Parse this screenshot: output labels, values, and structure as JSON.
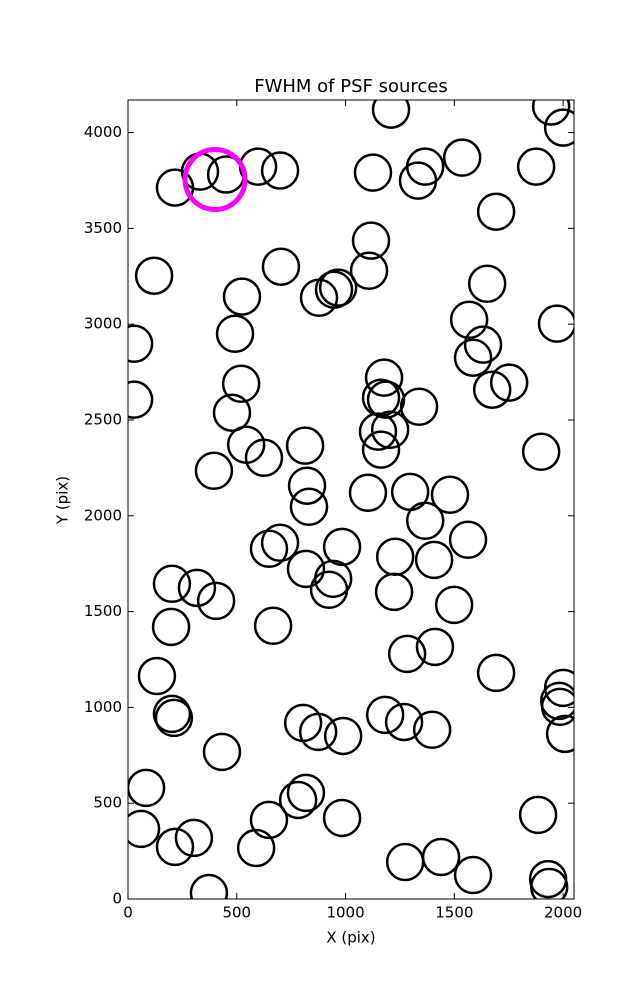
{
  "chart_data": {
    "type": "scatter",
    "title": "FWHM of PSF sources",
    "xlabel": "X (pix)",
    "ylabel": "Y (pix)",
    "xlim": [
      0,
      2050
    ],
    "ylim": [
      0,
      4170
    ],
    "xticks": [
      0,
      500,
      1000,
      1500,
      2000
    ],
    "yticks": [
      0,
      500,
      1000,
      1500,
      2000,
      2500,
      3000,
      3500,
      4000
    ],
    "series": [
      {
        "color": "#000000",
        "x": [
          216,
          331,
          451,
          598,
          699,
          1209,
          1126,
          1333,
          1366,
          1536,
          1876,
          1945,
          2000,
          120,
          1117,
          703,
          1692,
          1651,
          524,
          878,
          947,
          966,
          1108,
          28,
          492,
          1568,
          1632,
          1586,
          1972,
          520,
          28,
          478,
          1177,
          1163,
          1186,
          1149,
          1205,
          1163,
          1338,
          1674,
          1752,
          543,
          625,
          814,
          395,
          1899,
          823,
          832,
          1103,
          1297,
          1480,
          1366,
          1563,
          984,
          699,
          648,
          818,
          943,
          924,
          1228,
          1223,
          1407,
          202,
          317,
          405,
          198,
          667,
          1499,
          133,
          1283,
          1411,
          1692,
          202,
          211,
          2000,
          1982,
          1986,
          2009,
          805,
          874,
          989,
          1182,
          1269,
          1398,
          432,
          83,
          818,
          782,
          648,
          984,
          60,
          303,
          216,
          589,
          1274,
          1439,
          1586,
          1885,
          1931,
          1936,
          372
        ],
        "y": [
          3713,
          3796,
          3781,
          3822,
          3802,
          4120,
          3791,
          3749,
          3822,
          3869,
          3822,
          4136,
          4026,
          3253,
          3436,
          3300,
          3587,
          3211,
          3144,
          3138,
          3180,
          3191,
          3279,
          2898,
          2950,
          3023,
          2893,
          2825,
          3003,
          2689,
          2606,
          2538,
          2721,
          2616,
          2606,
          2439,
          2449,
          2345,
          2569,
          2658,
          2695,
          2371,
          2303,
          2366,
          2235,
          2334,
          2157,
          2047,
          2120,
          2125,
          2110,
          1974,
          1875,
          1838,
          1859,
          1828,
          1723,
          1671,
          1614,
          1786,
          1603,
          1770,
          1645,
          1624,
          1556,
          1420,
          1426,
          1535,
          1164,
          1279,
          1316,
          1180,
          966,
          945,
          1102,
          1034,
          1003,
          862,
          919,
          872,
          851,
          961,
          924,
          883,
          768,
          580,
          554,
          517,
          413,
          423,
          366,
          319,
          272,
          266,
          193,
          219,
          125,
          439,
          104,
          63,
          31
        ]
      },
      {
        "color": "#ff00ff",
        "x": [
          400
        ],
        "y": [
          3755
        ]
      }
    ]
  }
}
